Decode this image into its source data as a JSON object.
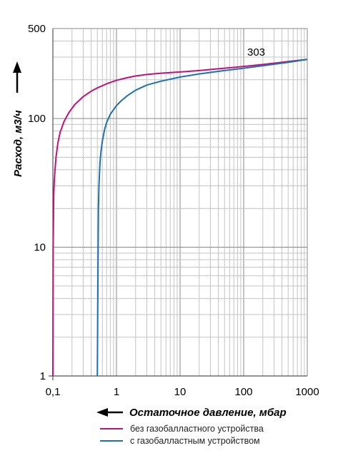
{
  "chart_data": {
    "type": "line",
    "xlabel": "Остаточное давление, мбар",
    "ylabel": "Расход, м3/ч",
    "x_scale": "log",
    "y_scale": "log",
    "xlim": [
      0.1,
      1000
    ],
    "ylim": [
      1,
      500
    ],
    "x_ticks": [
      "0,1",
      "1",
      "10",
      "100",
      "1000"
    ],
    "y_ticks": [
      "500",
      "100",
      "10",
      "1"
    ],
    "grid": true,
    "annotation": "303",
    "legend_position": "bottom",
    "series": [
      {
        "name": "без газобалластного устройства",
        "color": "#c0137a",
        "x": [
          0.1,
          0.101,
          0.103,
          0.105,
          0.108,
          0.112,
          0.12,
          0.13,
          0.15,
          0.18,
          0.22,
          0.3,
          0.4,
          0.5,
          0.7,
          1,
          1.5,
          2,
          3,
          5,
          10,
          20,
          50,
          100,
          200,
          500,
          1000
        ],
        "values": [
          1,
          10,
          25,
          32,
          40,
          50,
          65,
          78,
          95,
          112,
          128,
          148,
          163,
          173,
          186,
          198,
          208,
          214,
          220,
          225,
          230,
          236,
          246,
          254,
          263,
          277,
          288
        ]
      },
      {
        "name": "с газобалластным устройством",
        "color": "#1f6fb5",
        "x": [
          0.5,
          0.51,
          0.52,
          0.53,
          0.55,
          0.57,
          0.6,
          0.65,
          0.7,
          0.8,
          1,
          1.2,
          1.5,
          2,
          3,
          5,
          10,
          20,
          50,
          100,
          200,
          500,
          1000
        ],
        "values": [
          1,
          5,
          20,
          30,
          45,
          55,
          67,
          82,
          93,
          108,
          126,
          138,
          151,
          166,
          182,
          195,
          210,
          222,
          236,
          246,
          257,
          273,
          288
        ]
      }
    ]
  }
}
